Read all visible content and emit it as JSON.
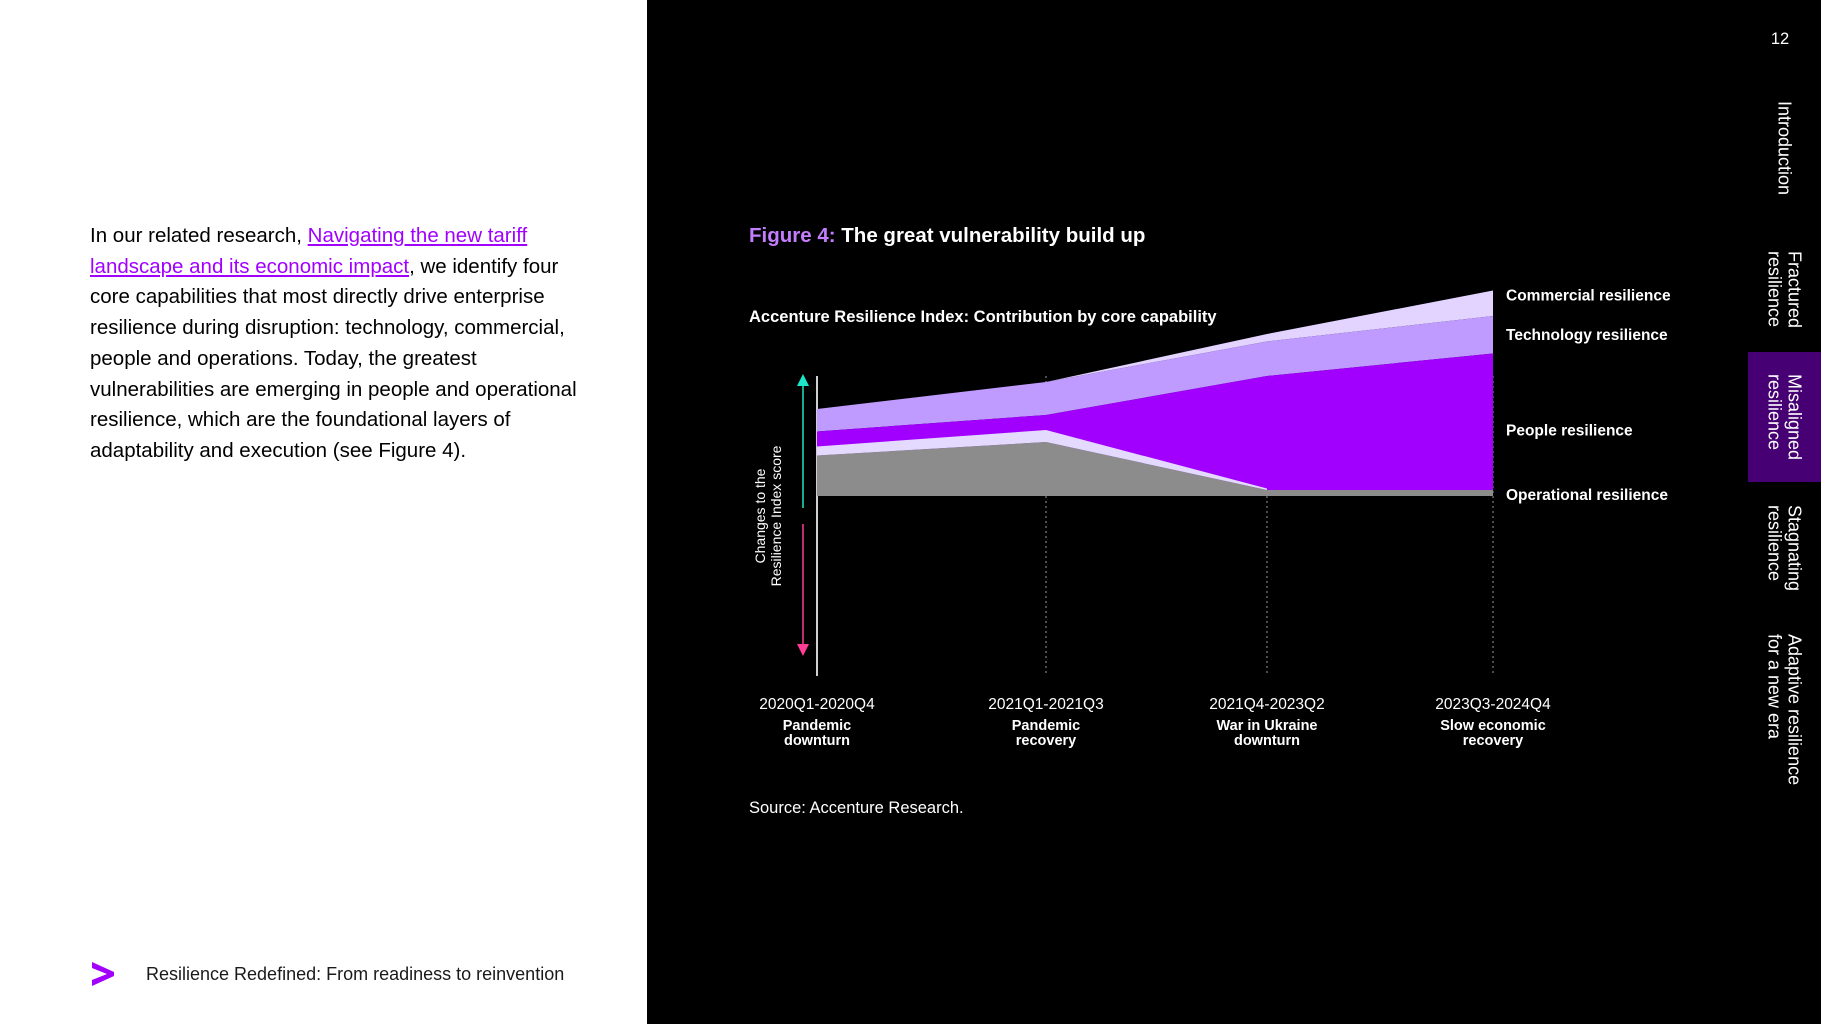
{
  "body": {
    "intro": "In our related research, ",
    "link_text": "Navigating the new tariff landscape and its economic impact",
    "rest": ", we identify four core capabilities that most directly drive enterprise resilience during disruption: technology, commercial, people and operations. Today, the greatest vulnerabilities are emerging in people and operational resilience, which are the foundational layers of adaptability and execution (see Figure 4)."
  },
  "footer": {
    "text": "Resilience Redefined: From readiness to reinvention"
  },
  "figure": {
    "label": "Figure 4:",
    "title": "The great vulnerability build up",
    "source": "Source: Accenture Research."
  },
  "page_number": "12",
  "nav": {
    "items": [
      {
        "label": "Introduction"
      },
      {
        "label": "Fractured\nresilience"
      },
      {
        "label": "Misaligned\nresilience"
      },
      {
        "label": "Stagnating\nresilience"
      },
      {
        "label": "Adaptive resilience\nfor a new era"
      }
    ]
  },
  "colors": {
    "accent": "#a100ff",
    "active_nav": "#460073",
    "commercial": "#e2d3ff",
    "technology": "#bf9aff",
    "people": "#a100ff",
    "people_pre": "#e4d9ff",
    "operational": "#8c8c8c"
  },
  "chart_data": {
    "type": "area",
    "title": "Accenture Resilience Index: Contribution by core capability",
    "ylabel": "Changes to the Resilience Index score",
    "categories": [
      "2020Q1-2020Q4",
      "2021Q1-2021Q3",
      "2021Q4-2023Q2",
      "2023Q3-2024Q4"
    ],
    "category_sublabels": [
      "Pandemic downturn",
      "Pandemic recovery",
      "War in Ukraine downturn",
      "Slow economic recovery"
    ],
    "ylim": [
      -12,
      8
    ],
    "series": [
      {
        "name": "Commercial resilience",
        "values": [
          0.0,
          0.0,
          0.5,
          1.7
        ]
      },
      {
        "name": "Technology resilience",
        "values": [
          1.5,
          2.2,
          2.3,
          2.5
        ]
      },
      {
        "name": "People resilience",
        "values": [
          1.6,
          1.8,
          7.6,
          9.1
        ]
      },
      {
        "name": "Operational resilience",
        "values": [
          2.7,
          3.6,
          0.4,
          0.4
        ]
      }
    ],
    "annotations": [
      {
        "text": "Commercial resilience",
        "series": "Commercial resilience"
      },
      {
        "text": "Technology resilience",
        "series": "Technology resilience"
      },
      {
        "text": "People resilience",
        "series": "People resilience"
      },
      {
        "text": "Operational resilience",
        "series": "Operational resilience"
      }
    ],
    "grid": false
  }
}
